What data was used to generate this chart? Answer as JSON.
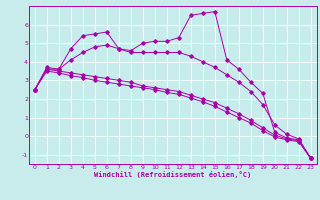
{
  "xlabel": "Windchill (Refroidissement éolien,°C)",
  "bg_color": "#c8ecec",
  "line_color": "#aa00aa",
  "grid_color": "#ffffff",
  "xlim": [
    -0.5,
    23.5
  ],
  "ylim": [
    -1.5,
    7.0
  ],
  "yticks": [
    -1,
    0,
    1,
    2,
    3,
    4,
    5,
    6
  ],
  "xticks": [
    0,
    1,
    2,
    3,
    4,
    5,
    6,
    7,
    8,
    9,
    10,
    11,
    12,
    13,
    14,
    15,
    16,
    17,
    18,
    19,
    20,
    21,
    22,
    23
  ],
  "line1_y": [
    2.5,
    3.7,
    3.6,
    4.7,
    5.4,
    5.5,
    5.6,
    4.7,
    4.6,
    5.0,
    5.1,
    5.1,
    5.3,
    6.5,
    6.6,
    6.7,
    4.1,
    3.6,
    2.9,
    2.3,
    0.2,
    -0.1,
    -0.2,
    -1.2
  ],
  "line2_y": [
    2.5,
    3.6,
    3.6,
    4.1,
    4.5,
    4.8,
    4.9,
    4.7,
    4.5,
    4.5,
    4.5,
    4.5,
    4.5,
    4.3,
    4.0,
    3.7,
    3.3,
    2.9,
    2.4,
    1.7,
    0.6,
    0.1,
    -0.15,
    -1.2
  ],
  "line3_y": [
    2.5,
    3.6,
    3.5,
    3.4,
    3.3,
    3.2,
    3.1,
    3.0,
    2.9,
    2.7,
    2.6,
    2.5,
    2.4,
    2.2,
    2.0,
    1.8,
    1.5,
    1.2,
    0.85,
    0.45,
    0.05,
    -0.15,
    -0.25,
    -1.2
  ],
  "line4_y": [
    2.5,
    3.5,
    3.4,
    3.25,
    3.15,
    3.0,
    2.9,
    2.8,
    2.7,
    2.6,
    2.5,
    2.35,
    2.25,
    2.05,
    1.85,
    1.6,
    1.3,
    1.0,
    0.7,
    0.3,
    -0.05,
    -0.2,
    -0.3,
    -1.2
  ]
}
